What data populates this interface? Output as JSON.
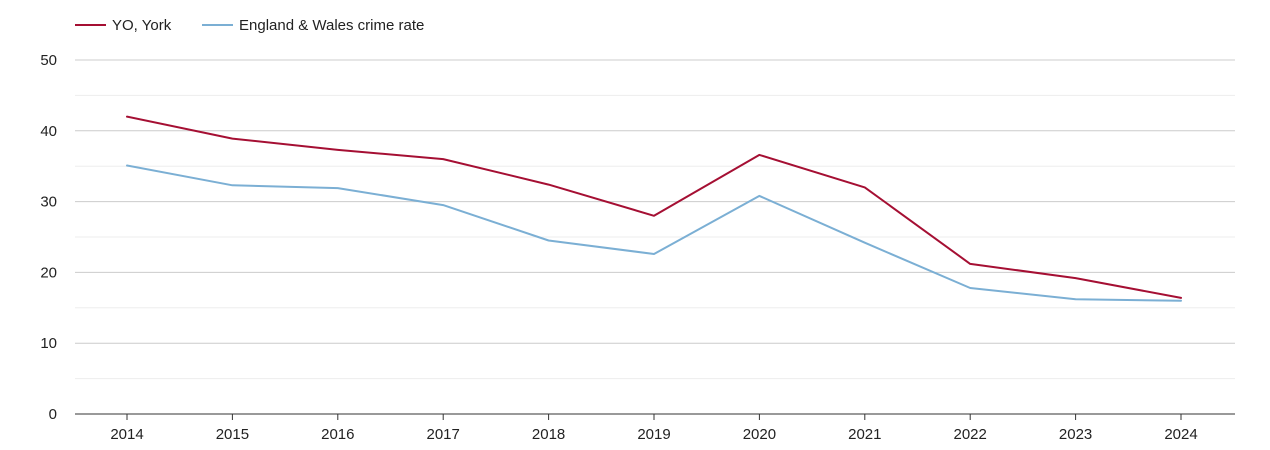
{
  "chart_data": {
    "type": "line",
    "title": "",
    "xlabel": "",
    "ylabel": "",
    "categories": [
      "2014",
      "2015",
      "2016",
      "2017",
      "2018",
      "2019",
      "2020",
      "2021",
      "2022",
      "2023",
      "2024"
    ],
    "ylim": [
      0,
      50
    ],
    "yticks": [
      0,
      10,
      20,
      30,
      40,
      50
    ],
    "grid": true,
    "legend_position": "top-left",
    "series": [
      {
        "name": "YO, York",
        "color": "#a50f33",
        "values": [
          42.0,
          38.9,
          37.3,
          36.0,
          32.4,
          28.0,
          36.6,
          32.0,
          21.2,
          19.2,
          16.4
        ]
      },
      {
        "name": "England & Wales crime rate",
        "color": "#7bafd4",
        "values": [
          35.1,
          32.3,
          31.9,
          29.5,
          24.5,
          22.6,
          30.8,
          24.2,
          17.8,
          16.2,
          16.0
        ]
      }
    ]
  }
}
